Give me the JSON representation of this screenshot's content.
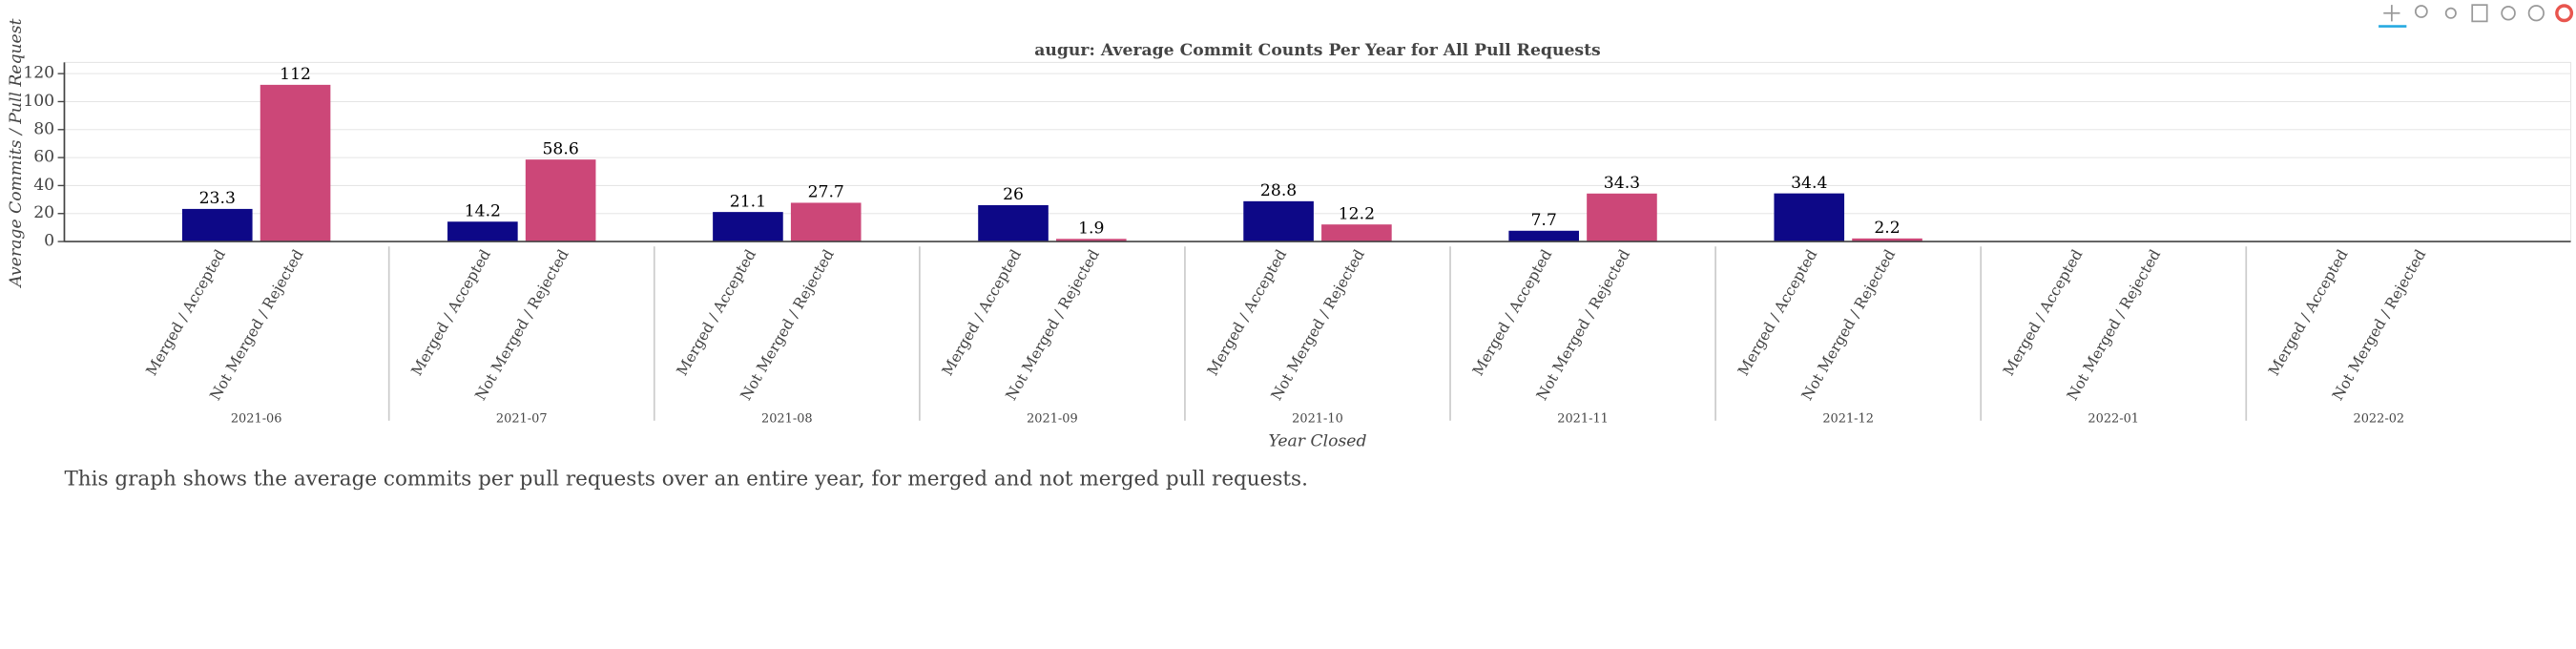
{
  "chart_data": {
    "type": "bar",
    "title": "augur: Average Commit Counts Per Year for All Pull Requests",
    "xlabel": "Year Closed",
    "ylabel": "Average Commits / Pull Request",
    "categories": [
      "2021-06",
      "2021-07",
      "2021-08",
      "2021-09",
      "2021-10",
      "2021-11",
      "2021-12",
      "2022-01",
      "2022-02"
    ],
    "series": [
      {
        "name": "Merged / Accepted",
        "color": "#0d0887",
        "values": [
          23.3,
          14.2,
          21.1,
          26,
          28.8,
          7.7,
          34.4,
          null,
          null
        ]
      },
      {
        "name": "Not Merged / Rejected",
        "color": "#cc4778",
        "values": [
          112,
          58.6,
          27.7,
          1.9,
          12.2,
          34.3,
          2.2,
          null,
          null
        ]
      }
    ],
    "ylim": [
      0,
      128
    ],
    "yticks": [
      0,
      20,
      40,
      60,
      80,
      100,
      120
    ],
    "grid": true,
    "description": "This graph shows the average commits per pull requests over an entire year, for merged and not merged pull requests."
  }
}
